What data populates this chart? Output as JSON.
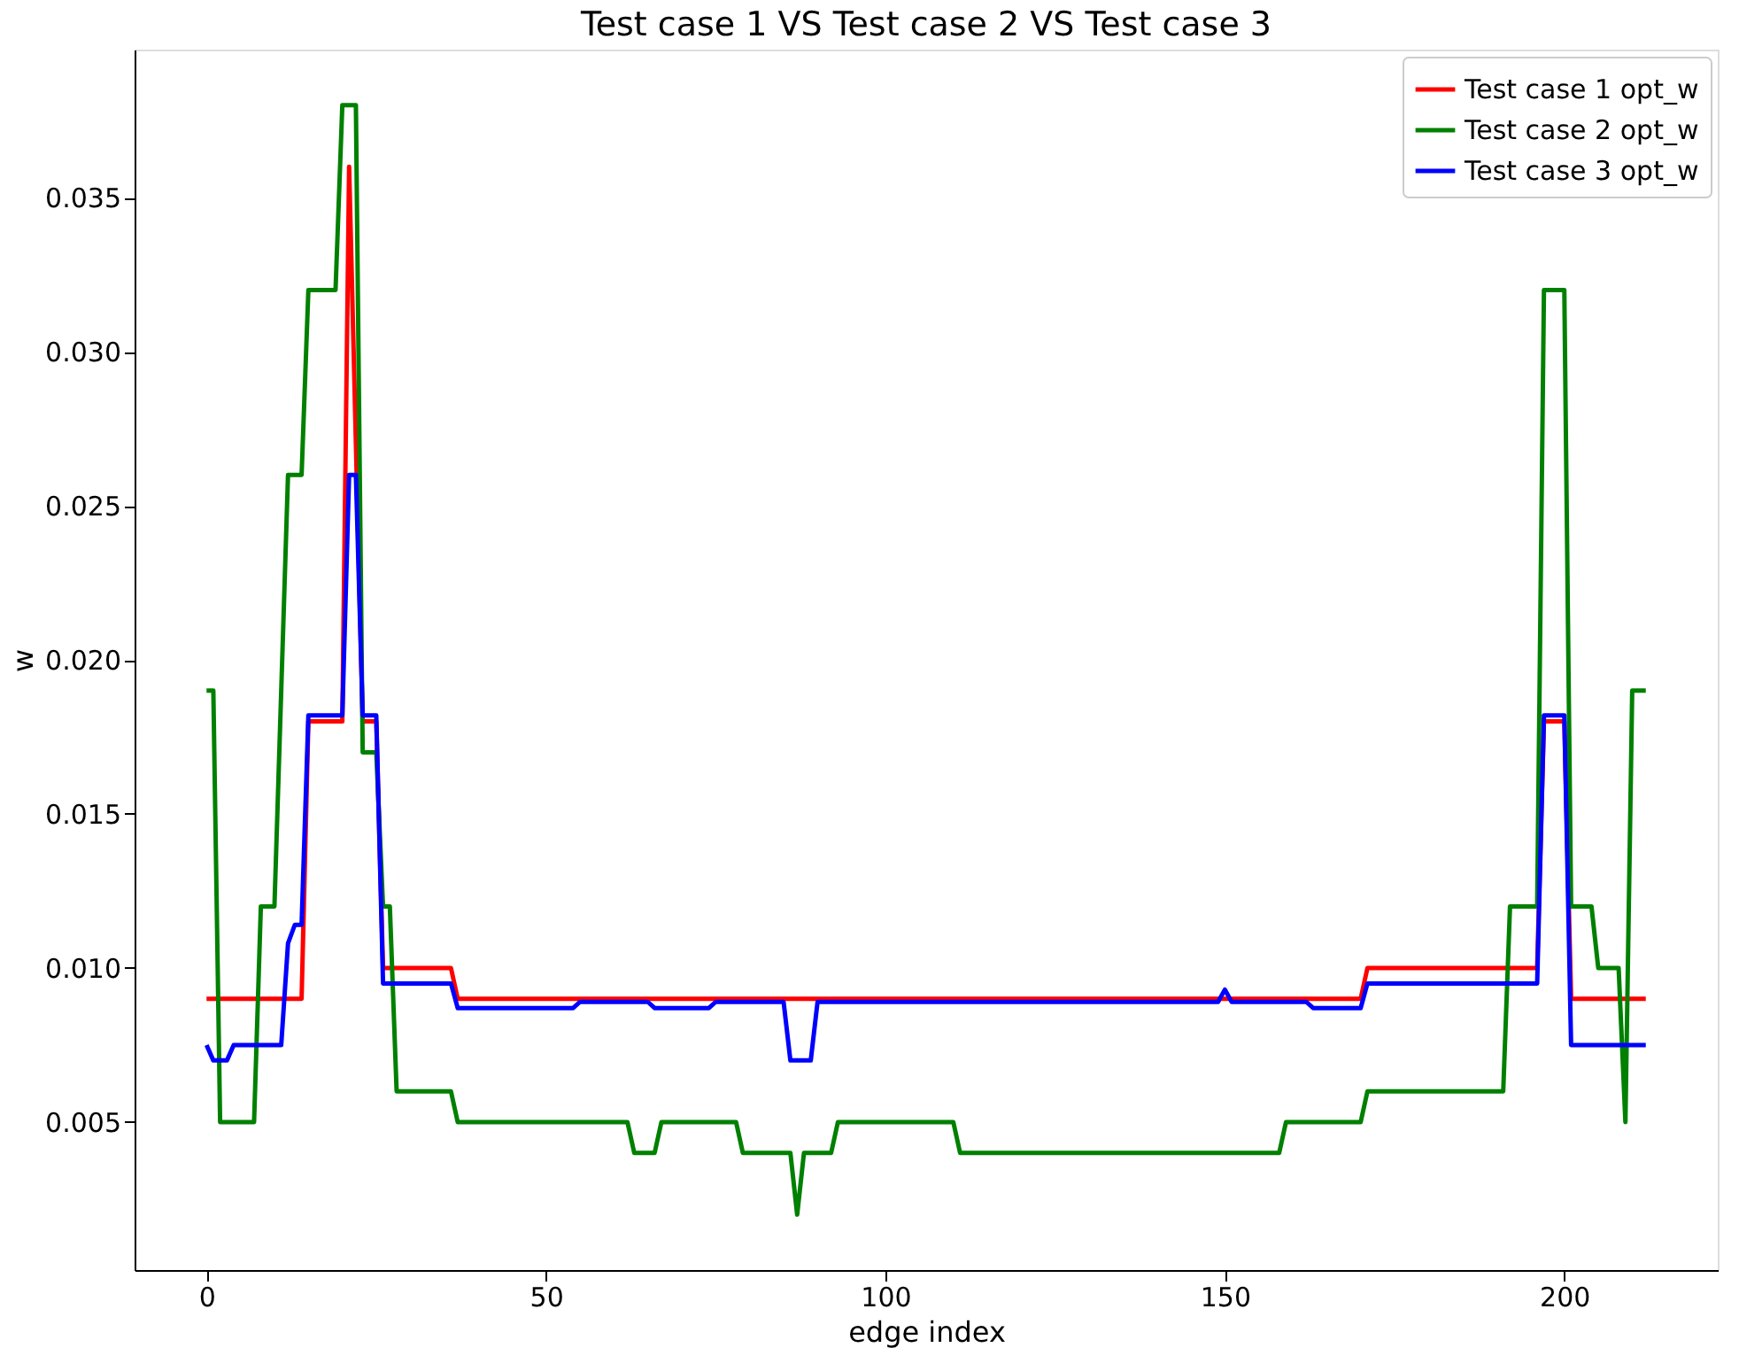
{
  "chart_data": {
    "type": "line",
    "title": "Test case 1 VS Test case 2 VS Test case 3",
    "xlabel": "edge index",
    "ylabel": "w",
    "xlim": [
      -10.6,
      222.6
    ],
    "xticks": [
      0,
      50,
      100,
      150,
      200
    ],
    "ylim": [
      0.0002,
      0.0398
    ],
    "yticks": [
      0.005,
      {
        "value": 0.01,
        "label": "0.010"
      },
      0.015,
      {
        "value": 0.02,
        "label": "0.020"
      },
      0.025,
      {
        "value": 0.03,
        "label": "0.030"
      },
      0.035
    ],
    "grid": false,
    "legend": "top right",
    "line_style": "solid",
    "marker": "none",
    "series": [
      {
        "name": "Test case 1 opt_w",
        "color": "#ff0000",
        "x": [
          0,
          14,
          15,
          20,
          21,
          23,
          25,
          26,
          36,
          37,
          170,
          171,
          196,
          197,
          200,
          201,
          212
        ],
        "values": [
          0.009,
          0.009,
          0.018,
          0.018,
          0.036,
          0.018,
          0.018,
          0.01,
          0.01,
          0.009,
          0.009,
          0.01,
          0.01,
          0.018,
          0.018,
          0.009,
          0.009
        ]
      },
      {
        "name": "Test case 2 opt_w",
        "color": "#008000",
        "x": [
          0,
          1,
          2,
          7,
          8,
          10,
          12,
          14,
          15,
          19,
          20,
          22,
          23,
          25,
          26,
          27,
          28,
          36,
          37,
          62,
          63,
          66,
          67,
          78,
          79,
          86,
          87,
          88,
          92,
          93,
          110,
          111,
          158,
          159,
          170,
          171,
          191,
          192,
          196,
          197,
          200,
          201,
          204,
          205,
          208,
          209,
          210,
          212
        ],
        "values": [
          0.019,
          0.019,
          0.005,
          0.005,
          0.012,
          0.012,
          0.026,
          0.026,
          0.032,
          0.032,
          0.038,
          0.038,
          0.017,
          0.017,
          0.012,
          0.012,
          0.006,
          0.006,
          0.005,
          0.005,
          0.004,
          0.004,
          0.005,
          0.005,
          0.004,
          0.004,
          0.002,
          0.004,
          0.004,
          0.005,
          0.005,
          0.004,
          0.004,
          0.005,
          0.005,
          0.006,
          0.006,
          0.012,
          0.012,
          0.032,
          0.032,
          0.012,
          0.012,
          0.01,
          0.01,
          0.005,
          0.019,
          0.019
        ]
      },
      {
        "name": "Test case 3 opt_w",
        "color": "#0000ff",
        "x": [
          0,
          1,
          3,
          4,
          11,
          12,
          13,
          14,
          15,
          20,
          21,
          22,
          23,
          25,
          26,
          36,
          37,
          54,
          55,
          65,
          66,
          74,
          75,
          85,
          86,
          89,
          90,
          149,
          150,
          151,
          162,
          163,
          170,
          171,
          196,
          197,
          200,
          201,
          212
        ],
        "values": [
          0.0075,
          0.007,
          0.007,
          0.0075,
          0.0075,
          0.0108,
          0.0114,
          0.0114,
          0.0182,
          0.0182,
          0.026,
          0.026,
          0.0182,
          0.0182,
          0.0095,
          0.0095,
          0.0087,
          0.0087,
          0.0089,
          0.0089,
          0.0087,
          0.0087,
          0.0089,
          0.0089,
          0.007,
          0.007,
          0.0089,
          0.0089,
          0.0093,
          0.0089,
          0.0089,
          0.0087,
          0.0087,
          0.0095,
          0.0095,
          0.0182,
          0.0182,
          0.0075,
          0.0075
        ]
      }
    ]
  }
}
